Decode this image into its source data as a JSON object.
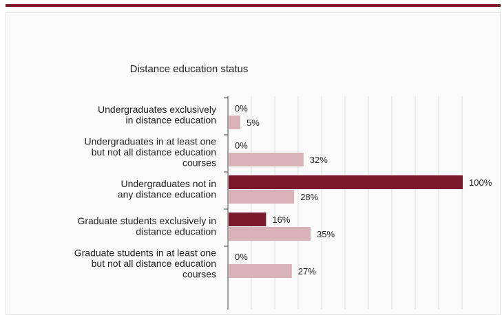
{
  "chart_data": {
    "type": "bar",
    "orientation": "horizontal",
    "title": "Distance education status",
    "categories": [
      [
        "Undergraduates exclusively",
        "in distance education"
      ],
      [
        "Undergraduates in at least one",
        "but not all distance education",
        "courses"
      ],
      [
        "Undergraduates not in",
        "any distance education"
      ],
      [
        "Graduate students exclusively in",
        "distance education"
      ],
      [
        "Graduate students in at least one",
        "but not all distance education",
        "courses"
      ]
    ],
    "series": [
      {
        "values": [
          0,
          0,
          100,
          16,
          0
        ],
        "color": "#7b1a2c"
      },
      {
        "values": [
          5,
          32,
          28,
          35,
          27
        ],
        "color": "#d8b1b9"
      }
    ],
    "value_suffix": "%",
    "xlim": [
      0,
      100
    ],
    "grid": true,
    "legend": "none"
  }
}
